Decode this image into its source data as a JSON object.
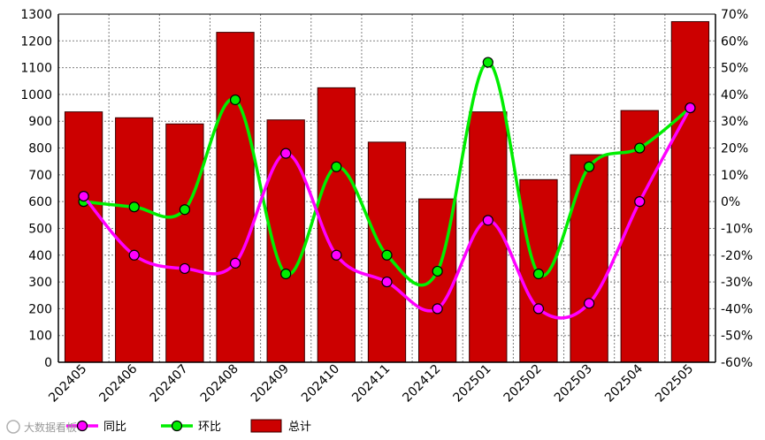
{
  "chart_data": {
    "type": "bar",
    "categories": [
      "202405",
      "202406",
      "202407",
      "202408",
      "202409",
      "202410",
      "202411",
      "202412",
      "202501",
      "202502",
      "202503",
      "202504",
      "202505"
    ],
    "series": [
      {
        "name": "总计",
        "type": "bar",
        "axis": "left",
        "color": "#cc0000",
        "values": [
          935,
          913,
          890,
          1232,
          905,
          1025,
          822,
          610,
          935,
          682,
          775,
          940,
          1272
        ]
      },
      {
        "name": "同比",
        "type": "line",
        "axis": "right",
        "color": "#ff00ff",
        "values": [
          2,
          -20,
          -25,
          -23,
          18,
          -20,
          -30,
          -40,
          -7,
          -40,
          -38,
          0,
          35
        ]
      },
      {
        "name": "环比",
        "type": "line",
        "axis": "right",
        "color": "#00ee00",
        "values": [
          0,
          -2,
          -3,
          38,
          -27,
          13,
          -20,
          -26,
          52,
          -27,
          13,
          20,
          35
        ]
      }
    ],
    "y_left": {
      "min": 0,
      "max": 1300,
      "step": 100
    },
    "y_right": {
      "min": -60,
      "max": 70,
      "step": 10,
      "suffix": "%"
    },
    "grid": true,
    "legend_position": "bottom"
  },
  "watermark": "大数据看板",
  "colors": {
    "bar": "#cc0000",
    "bar_stroke": "#3a0000",
    "yoy": "#ff00ff",
    "mom": "#00ee00",
    "grid": "#808080"
  }
}
